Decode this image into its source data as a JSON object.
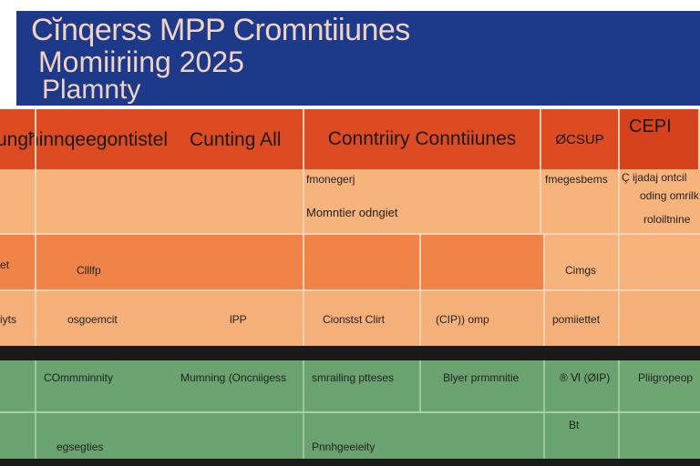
{
  "title": {
    "line1": "Cĭnqerss MPP Cromntiiunes",
    "line2": "Momiiriing 2025",
    "line3": "Plamnty"
  },
  "headers": [
    "ungħinnqeegontistel",
    "Cunting All",
    "Conntriiry Conntiiunes",
    "ØCSUP",
    "CEPI"
  ],
  "rows": {
    "r1": {
      "c3a": "fmonegerj",
      "c3b": "Momntier odngiet",
      "c4": "fmegesbems",
      "c5a": "Ç ijadaj ontcil",
      "c5b": "oding omrilk",
      "c5c": "roloiltnine"
    },
    "r2": {
      "c1": "et",
      "c2": "Clllfp",
      "c4": "Cimgs"
    },
    "r3": {
      "c1": "iyts",
      "c2a": "osgoemcit",
      "c2b": "lPP",
      "c3": "Cionstst Clirt",
      "c3b": "(CIP)) omp",
      "c4": "pomiiettet"
    },
    "g1": {
      "c1": "COmmminnity",
      "c2": "Mumning (Oncniigess",
      "c3": "smrailing ptteses",
      "c3b": "Blyer prmmnitie",
      "c4": "® Ⅵ (ØIP)",
      "c5": "Pliigropeop"
    },
    "g2": {
      "c1": "egsegties",
      "c3": "Pnnhgeeieity",
      "c4": "Bt"
    }
  },
  "colors": {
    "banner": "#1d3a8a",
    "header": "#dc4b22",
    "orange_light": "#f6b37b",
    "orange_mid": "#f08448",
    "green": "#6aa36f"
  }
}
